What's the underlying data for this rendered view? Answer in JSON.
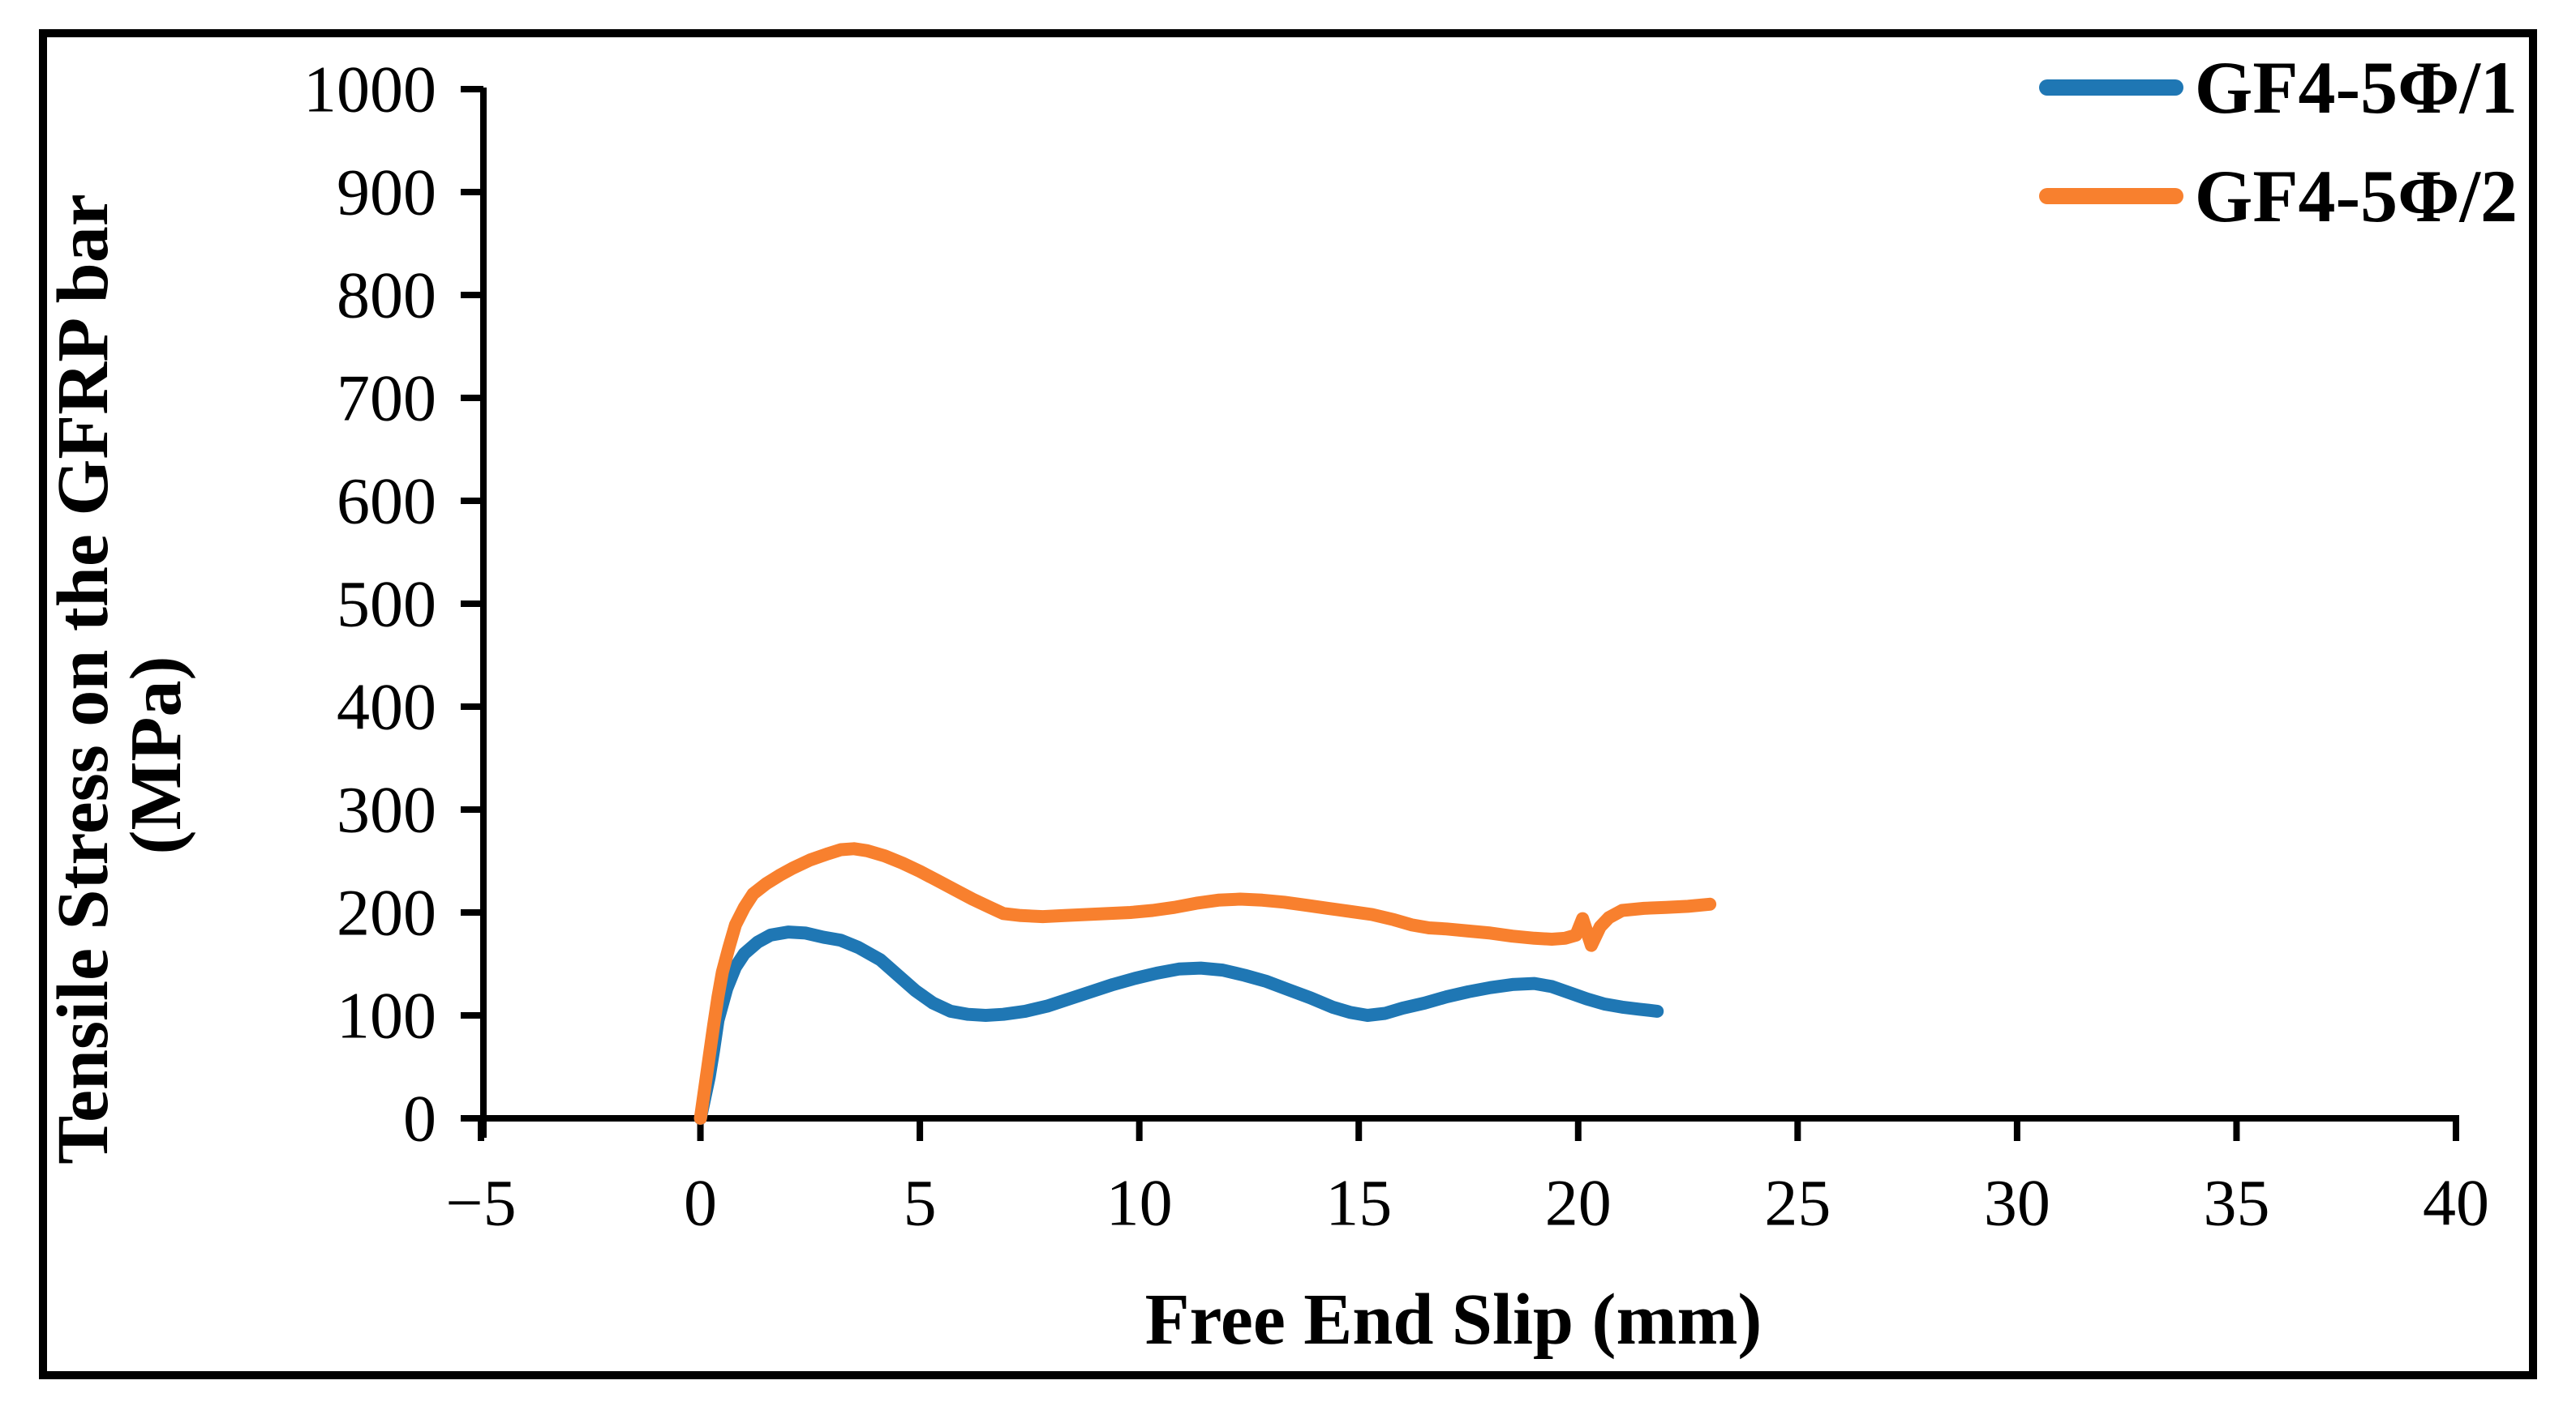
{
  "figure": {
    "background_color": "#ffffff",
    "border_color": "#000000",
    "axis_color": "#000000"
  },
  "chart_data": {
    "type": "line",
    "title": "",
    "xlabel": "Free End Slip (mm)",
    "ylabel": "Tensile Stress on the GFRP bar (MPa)",
    "ylabel_lines": [
      "Tensile Stress on the GFRP bar",
      "(MPa)"
    ],
    "xlim": [
      -5,
      40
    ],
    "ylim": [
      0,
      1000
    ],
    "grid": false,
    "legend_position": "top-right-inside",
    "x_ticks": [
      {
        "value": -5,
        "label": "−5"
      },
      {
        "value": 0,
        "label": "0"
      },
      {
        "value": 5,
        "label": "5"
      },
      {
        "value": 10,
        "label": "10"
      },
      {
        "value": 15,
        "label": "15"
      },
      {
        "value": 20,
        "label": "20"
      },
      {
        "value": 25,
        "label": "25"
      },
      {
        "value": 30,
        "label": "30"
      },
      {
        "value": 35,
        "label": "35"
      },
      {
        "value": 40,
        "label": "40"
      }
    ],
    "y_ticks": [
      {
        "value": 0,
        "label": "0"
      },
      {
        "value": 100,
        "label": "100"
      },
      {
        "value": 200,
        "label": "200"
      },
      {
        "value": 300,
        "label": "300"
      },
      {
        "value": 400,
        "label": "400"
      },
      {
        "value": 500,
        "label": "500"
      },
      {
        "value": 600,
        "label": "600"
      },
      {
        "value": 700,
        "label": "700"
      },
      {
        "value": 800,
        "label": "800"
      },
      {
        "value": 900,
        "label": "900"
      },
      {
        "value": 1000,
        "label": "1000"
      }
    ],
    "series": [
      {
        "name": "GF4-5Φ/1",
        "color": "#1F77B4",
        "points": [
          [
            0,
            0
          ],
          [
            0.1,
            20
          ],
          [
            0.2,
            40
          ],
          [
            0.3,
            66
          ],
          [
            0.4,
            95
          ],
          [
            0.6,
            126
          ],
          [
            0.8,
            147
          ],
          [
            1.0,
            160
          ],
          [
            1.3,
            171
          ],
          [
            1.6,
            178
          ],
          [
            2.0,
            181
          ],
          [
            2.4,
            180
          ],
          [
            2.8,
            176
          ],
          [
            3.2,
            173
          ],
          [
            3.6,
            166
          ],
          [
            4.1,
            154
          ],
          [
            4.5,
            139
          ],
          [
            4.9,
            124
          ],
          [
            5.3,
            112
          ],
          [
            5.7,
            104
          ],
          [
            6.1,
            101
          ],
          [
            6.5,
            100
          ],
          [
            6.9,
            101
          ],
          [
            7.4,
            104
          ],
          [
            7.9,
            109
          ],
          [
            8.4,
            116
          ],
          [
            8.9,
            123
          ],
          [
            9.4,
            130
          ],
          [
            9.9,
            136
          ],
          [
            10.4,
            141
          ],
          [
            10.9,
            145
          ],
          [
            11.4,
            146
          ],
          [
            11.9,
            144
          ],
          [
            12.4,
            139
          ],
          [
            12.9,
            133
          ],
          [
            13.4,
            125
          ],
          [
            13.9,
            117
          ],
          [
            14.4,
            108
          ],
          [
            14.8,
            103
          ],
          [
            15.2,
            100
          ],
          [
            15.6,
            102
          ],
          [
            16.0,
            107
          ],
          [
            16.5,
            112
          ],
          [
            17.0,
            118
          ],
          [
            17.5,
            123
          ],
          [
            18.0,
            127
          ],
          [
            18.5,
            130
          ],
          [
            19.0,
            131
          ],
          [
            19.4,
            128
          ],
          [
            19.8,
            122
          ],
          [
            20.2,
            116
          ],
          [
            20.6,
            111
          ],
          [
            21.0,
            108
          ],
          [
            21.4,
            106
          ],
          [
            21.8,
            104
          ]
        ]
      },
      {
        "name": "GF4-5Φ/2",
        "color": "#F8802E",
        "points": [
          [
            0,
            0
          ],
          [
            0.1,
            30
          ],
          [
            0.2,
            60
          ],
          [
            0.3,
            90
          ],
          [
            0.4,
            118
          ],
          [
            0.5,
            142
          ],
          [
            0.65,
            166
          ],
          [
            0.8,
            188
          ],
          [
            1.0,
            205
          ],
          [
            1.2,
            218
          ],
          [
            1.5,
            228
          ],
          [
            1.8,
            236
          ],
          [
            2.1,
            243
          ],
          [
            2.5,
            251
          ],
          [
            2.9,
            257
          ],
          [
            3.2,
            261
          ],
          [
            3.5,
            262
          ],
          [
            3.8,
            260
          ],
          [
            4.2,
            255
          ],
          [
            4.6,
            248
          ],
          [
            5.0,
            240
          ],
          [
            5.4,
            231
          ],
          [
            5.8,
            222
          ],
          [
            6.2,
            213
          ],
          [
            6.6,
            205
          ],
          [
            6.9,
            199
          ],
          [
            7.3,
            197
          ],
          [
            7.8,
            196
          ],
          [
            8.3,
            197
          ],
          [
            8.8,
            198
          ],
          [
            9.3,
            199
          ],
          [
            9.8,
            200
          ],
          [
            10.3,
            202
          ],
          [
            10.8,
            205
          ],
          [
            11.3,
            209
          ],
          [
            11.8,
            212
          ],
          [
            12.3,
            213
          ],
          [
            12.8,
            212
          ],
          [
            13.3,
            210
          ],
          [
            13.8,
            207
          ],
          [
            14.3,
            204
          ],
          [
            14.8,
            201
          ],
          [
            15.3,
            198
          ],
          [
            15.8,
            193
          ],
          [
            16.2,
            188
          ],
          [
            16.6,
            185
          ],
          [
            17.0,
            184
          ],
          [
            17.5,
            182
          ],
          [
            18.0,
            180
          ],
          [
            18.5,
            177
          ],
          [
            19.0,
            175
          ],
          [
            19.4,
            174
          ],
          [
            19.7,
            175
          ],
          [
            19.95,
            178
          ],
          [
            20.1,
            194
          ],
          [
            20.3,
            168
          ],
          [
            20.5,
            186
          ],
          [
            20.7,
            195
          ],
          [
            21.0,
            202
          ],
          [
            21.5,
            204
          ],
          [
            22.0,
            205
          ],
          [
            22.5,
            206
          ],
          [
            23.0,
            208
          ]
        ]
      }
    ]
  }
}
